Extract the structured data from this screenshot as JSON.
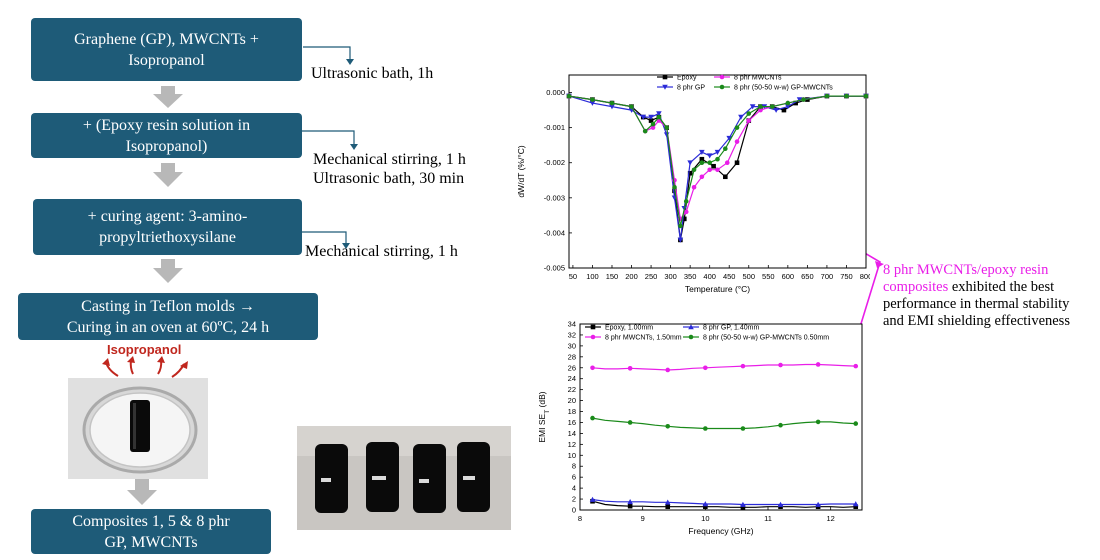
{
  "flow": {
    "steps": [
      {
        "lines": [
          "Graphene (GP), MWCNTs +",
          "Isopropanol"
        ]
      },
      {
        "lines": [
          "+ (Epoxy resin solution in",
          "Isopropanol)"
        ]
      },
      {
        "lines": [
          "+ curing agent: 3-amino-",
          "propyltriethoxysilane"
        ]
      },
      {
        "lines": [
          "Casting in Teflon molds →",
          "Curing in an oven at 60ºC, 24 h"
        ]
      },
      {
        "lines": [
          "Composites 1, 5 & 8 phr",
          "GP, MWCNTs"
        ]
      }
    ],
    "notes": [
      {
        "lines": [
          "Ultrasonic bath, 1h"
        ]
      },
      {
        "lines": [
          "Mechanical stirring, 1 h",
          "Ultrasonic bath, 30 min"
        ]
      },
      {
        "lines": [
          "Mechanical stirring, 1 h"
        ]
      }
    ],
    "evaporation_label": "Isopropanol"
  },
  "colors": {
    "box": "#1e5b78",
    "arrow": "#b8b8b8",
    "magenta": "#e91ee8",
    "evap": "#c0271e"
  },
  "conclusion": {
    "highlight": "8 phr MWCNTs/epoxy resin composites",
    "rest": " exhibited the best performance in thermal stability and EMI shielding effectiveness"
  },
  "chart_data": [
    {
      "type": "line",
      "xlabel": "Temperature (°C)",
      "ylabel": "dW/dT (%/°C)",
      "xlim": [
        40,
        800
      ],
      "ylim": [
        -0.005,
        0.0005
      ],
      "xticks": [
        50,
        100,
        150,
        200,
        250,
        300,
        350,
        400,
        450,
        500,
        550,
        600,
        650,
        700,
        750,
        800
      ],
      "yticks": [
        0.0,
        -0.001,
        -0.002,
        -0.003,
        -0.004,
        -0.005
      ],
      "ytick_labels": [
        "0.000",
        "-0.001",
        "-0.002",
        "-0.003",
        "-0.004",
        "-0.005"
      ],
      "legend_position": "top",
      "series": [
        {
          "name": "Epoxy",
          "color": "#000000",
          "marker": "square",
          "x": [
            40,
            100,
            150,
            200,
            230,
            250,
            270,
            290,
            310,
            325,
            335,
            350,
            380,
            410,
            440,
            470,
            500,
            530,
            560,
            590,
            620,
            650,
            700,
            750,
            800
          ],
          "y": [
            -0.0001,
            -0.0002,
            -0.0003,
            -0.0004,
            -0.0007,
            -0.0008,
            -0.0007,
            -0.001,
            -0.0028,
            -0.0042,
            -0.0036,
            -0.0023,
            -0.0019,
            -0.0021,
            -0.0024,
            -0.002,
            -0.0008,
            -0.0004,
            -0.0004,
            -0.0005,
            -0.0003,
            -0.0002,
            -0.0001,
            -0.0001,
            -0.0001
          ]
        },
        {
          "name": "8 phr GP",
          "color": "#2b2bd8",
          "marker": "triangle-down",
          "x": [
            40,
            100,
            150,
            200,
            230,
            250,
            270,
            290,
            310,
            325,
            335,
            350,
            380,
            400,
            420,
            450,
            480,
            510,
            540,
            570,
            600,
            630,
            700,
            750,
            800
          ],
          "y": [
            -0.0001,
            -0.0003,
            -0.0004,
            -0.0005,
            -0.0007,
            -0.0007,
            -0.0006,
            -0.0012,
            -0.003,
            -0.0042,
            -0.0033,
            -0.002,
            -0.0017,
            -0.0018,
            -0.0017,
            -0.0013,
            -0.0007,
            -0.0004,
            -0.0004,
            -0.0005,
            -0.0004,
            -0.0002,
            -0.0001,
            -0.0001,
            -0.0001
          ]
        },
        {
          "name": "8 phr MWCNTs",
          "color": "#e91ee8",
          "marker": "circle",
          "x": [
            40,
            100,
            150,
            200,
            235,
            255,
            270,
            290,
            310,
            325,
            340,
            360,
            380,
            400,
            420,
            445,
            470,
            500,
            530,
            560,
            600,
            640,
            700,
            750,
            800
          ],
          "y": [
            -0.0001,
            -0.0002,
            -0.0003,
            -0.0004,
            -0.0011,
            -0.001,
            -0.0008,
            -0.001,
            -0.0025,
            -0.0036,
            -0.0034,
            -0.0027,
            -0.0024,
            -0.0022,
            -0.0022,
            -0.002,
            -0.0014,
            -0.0008,
            -0.0005,
            -0.0004,
            -0.0003,
            -0.0002,
            -0.0001,
            -0.0001,
            -0.0001
          ]
        },
        {
          "name": "8 phr (50-50 w-w) GP-MWCNTs",
          "color": "#1a8a1a",
          "marker": "circle",
          "x": [
            40,
            100,
            150,
            200,
            235,
            255,
            270,
            290,
            310,
            325,
            340,
            360,
            380,
            400,
            420,
            440,
            470,
            500,
            530,
            560,
            600,
            640,
            700,
            750,
            800
          ],
          "y": [
            -0.0001,
            -0.0002,
            -0.0003,
            -0.0004,
            -0.0011,
            -0.0009,
            -0.0007,
            -0.001,
            -0.0027,
            -0.0038,
            -0.0031,
            -0.0022,
            -0.002,
            -0.002,
            -0.0019,
            -0.0016,
            -0.001,
            -0.0006,
            -0.0004,
            -0.0004,
            -0.0003,
            -0.0002,
            -0.0001,
            -0.0001,
            -0.0001
          ]
        }
      ]
    },
    {
      "type": "line",
      "xlabel": "Frequency (GHz)",
      "ylabel": "EMI SE",
      "ylabel_sub": "T",
      "ylabel_unit": " (dB)",
      "xlim": [
        8,
        12.5
      ],
      "ylim": [
        0,
        34
      ],
      "xticks": [
        8,
        9,
        10,
        11,
        12
      ],
      "yticks": [
        0,
        2,
        4,
        6,
        8,
        10,
        12,
        14,
        16,
        18,
        20,
        22,
        24,
        26,
        28,
        30,
        32,
        34
      ],
      "legend_position": "top",
      "series": [
        {
          "name": "Epoxy, 1.00mm",
          "color": "#000000",
          "marker": "square",
          "x": [
            8.2,
            8.4,
            8.6,
            8.8,
            9.0,
            9.2,
            9.4,
            9.6,
            9.8,
            10.0,
            10.2,
            10.4,
            10.6,
            10.8,
            11.0,
            11.2,
            11.4,
            11.6,
            11.8,
            12.0,
            12.2,
            12.4
          ],
          "y": [
            1.6,
            1.0,
            0.8,
            0.7,
            0.7,
            0.6,
            0.6,
            0.6,
            0.6,
            0.6,
            0.6,
            0.5,
            0.5,
            0.5,
            0.6,
            0.6,
            0.6,
            0.5,
            0.6,
            0.6,
            0.5,
            0.6
          ]
        },
        {
          "name": "8 phr MWCNTs, 1.50mm",
          "color": "#e91ee8",
          "marker": "circle",
          "x": [
            8.2,
            8.4,
            8.6,
            8.8,
            9.0,
            9.2,
            9.4,
            9.6,
            9.8,
            10.0,
            10.2,
            10.4,
            10.6,
            10.8,
            11.0,
            11.2,
            11.4,
            11.6,
            11.8,
            12.0,
            12.2,
            12.4
          ],
          "y": [
            26.0,
            25.8,
            25.8,
            25.9,
            25.8,
            25.7,
            25.6,
            25.7,
            25.9,
            26.0,
            26.1,
            26.2,
            26.3,
            26.4,
            26.5,
            26.5,
            26.5,
            26.6,
            26.6,
            26.5,
            26.4,
            26.3
          ]
        },
        {
          "name": "8 phr GP, 1.40mm",
          "color": "#2b2bd8",
          "marker": "triangle-up",
          "x": [
            8.2,
            8.4,
            8.6,
            8.8,
            9.0,
            9.2,
            9.4,
            9.6,
            9.8,
            10.0,
            10.2,
            10.4,
            10.6,
            10.8,
            11.0,
            11.2,
            11.4,
            11.6,
            11.8,
            12.0,
            12.2,
            12.4
          ],
          "y": [
            1.9,
            1.6,
            1.5,
            1.5,
            1.5,
            1.4,
            1.4,
            1.3,
            1.2,
            1.1,
            1.1,
            1.1,
            1.0,
            1.0,
            1.0,
            1.0,
            1.0,
            1.0,
            1.0,
            1.1,
            1.1,
            1.1
          ]
        },
        {
          "name": "8 phr (50-50 w-w) GP-MWCNTs 0.50mm",
          "color": "#1a8a1a",
          "marker": "circle",
          "x": [
            8.2,
            8.4,
            8.6,
            8.8,
            9.0,
            9.2,
            9.4,
            9.6,
            9.8,
            10.0,
            10.2,
            10.4,
            10.6,
            10.8,
            11.0,
            11.2,
            11.4,
            11.6,
            11.8,
            12.0,
            12.2,
            12.4
          ],
          "y": [
            16.8,
            16.4,
            16.2,
            16.0,
            15.8,
            15.5,
            15.3,
            15.1,
            15.0,
            14.9,
            14.9,
            14.9,
            14.9,
            15.0,
            15.2,
            15.5,
            15.8,
            16.0,
            16.1,
            16.1,
            15.9,
            15.8
          ]
        }
      ]
    }
  ]
}
